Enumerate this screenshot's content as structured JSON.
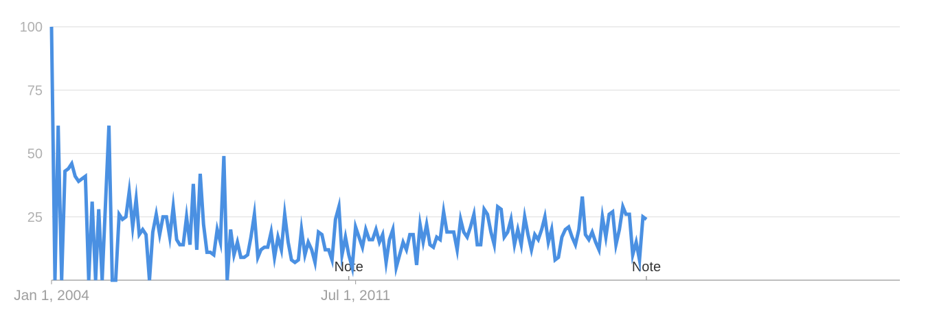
{
  "chart_data": {
    "type": "line",
    "title": "",
    "xlabel": "",
    "ylabel": "",
    "ylim": [
      0,
      100
    ],
    "y_ticks": [
      "100",
      "75",
      "50",
      "25"
    ],
    "x_tick_labels": [
      {
        "label": "Jan 1, 2004",
        "date": "2004-01-01"
      },
      {
        "label": "Jul 1, 2011",
        "date": "2011-07-01"
      }
    ],
    "xrange": [
      "2004-01-01",
      "2024-12-01"
    ],
    "grid": true,
    "legend": "none",
    "annotations": [
      {
        "label": "Note",
        "date": "2011-05-01"
      },
      {
        "label": "Note",
        "date": "2018-09-01"
      }
    ],
    "series": [
      {
        "frequency": "monthly",
        "start": "2004-01",
        "color": "#4a90e2",
        "values": [
          100,
          0,
          61,
          0,
          43,
          44,
          46,
          41,
          39,
          40,
          41,
          0,
          31,
          0,
          28,
          0,
          30,
          61,
          0,
          0,
          26,
          24,
          25,
          35,
          21,
          32,
          18,
          20,
          18,
          0,
          19,
          26,
          18,
          25,
          25,
          17,
          29,
          16,
          14,
          14,
          25,
          14,
          38,
          12,
          42,
          22,
          11,
          11,
          10,
          20,
          15,
          49,
          0,
          20,
          10,
          15,
          9,
          9,
          10,
          17,
          26,
          9,
          12,
          13,
          13,
          19,
          9,
          17,
          12,
          26,
          15,
          8,
          7,
          8,
          20,
          10,
          15,
          12,
          7,
          19,
          18,
          12,
          12,
          8,
          24,
          29,
          10,
          17,
          10,
          5,
          21,
          17,
          13,
          20,
          16,
          16,
          20,
          15,
          18,
          7,
          16,
          20,
          5,
          10,
          15,
          12,
          18,
          18,
          6,
          22,
          15,
          22,
          14,
          13,
          17,
          16,
          27,
          19,
          19,
          19,
          12,
          24,
          19,
          17,
          21,
          26,
          14,
          14,
          28,
          26,
          19,
          14,
          29,
          28,
          17,
          19,
          24,
          14,
          20,
          14,
          25,
          18,
          12,
          18,
          16,
          20,
          25,
          15,
          20,
          8,
          9,
          17,
          20,
          21,
          17,
          14,
          20,
          33,
          18,
          16,
          19,
          15,
          12,
          25,
          17,
          26,
          27,
          14,
          20,
          29,
          26,
          26,
          10,
          15,
          8,
          25,
          24
        ]
      }
    ]
  }
}
